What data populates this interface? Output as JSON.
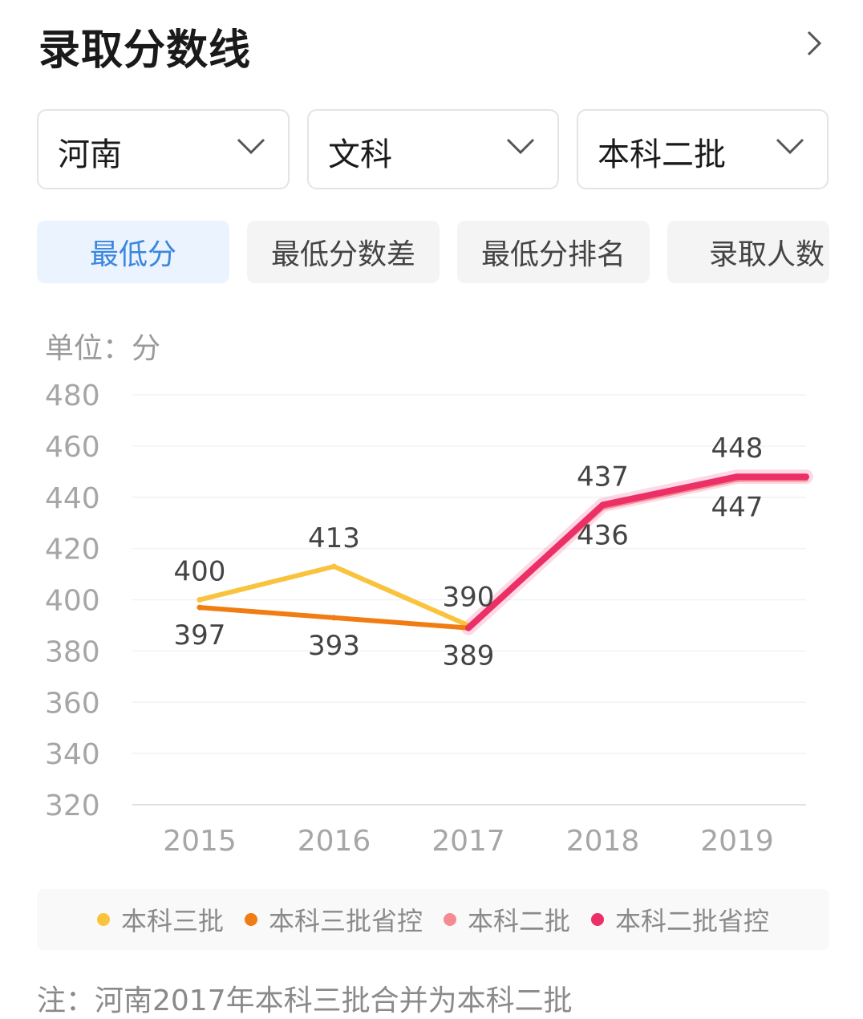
{
  "header": {
    "title": "录取分数线"
  },
  "filters": [
    {
      "label": "河南"
    },
    {
      "label": "文科"
    },
    {
      "label": "本科二批"
    }
  ],
  "tabs": [
    {
      "label": "最低分",
      "active": true
    },
    {
      "label": "最低分数差",
      "active": false
    },
    {
      "label": "最低分排名",
      "active": false
    },
    {
      "label": "录取人数",
      "active": false
    }
  ],
  "colors": {
    "accent": "#3b86de",
    "series_1": "#f9c33e",
    "series_2": "#f07c12",
    "series_3": "#f58a92",
    "series_4": "#ec2f67"
  },
  "chart_data": {
    "type": "line",
    "unit_label": "单位：分",
    "x": [
      "2015",
      "2016",
      "2017",
      "2018",
      "2019"
    ],
    "ylim": [
      320,
      480
    ],
    "yticks": [
      320,
      340,
      360,
      380,
      400,
      420,
      440,
      460,
      480
    ],
    "grid": true,
    "legend_position": "bottom",
    "series": [
      {
        "name": "本科三批",
        "color": "#f9c33e",
        "values": [
          400,
          413,
          390,
          null,
          null
        ]
      },
      {
        "name": "本科三批省控",
        "color": "#f07c12",
        "values": [
          397,
          393,
          389,
          null,
          null
        ]
      },
      {
        "name": "本科二批",
        "color": "#f58a92",
        "values": [
          null,
          null,
          389,
          436,
          447
        ]
      },
      {
        "name": "本科二批省控",
        "color": "#ec2f67",
        "values": [
          null,
          null,
          389,
          437,
          448
        ]
      }
    ],
    "data_labels": [
      {
        "x": "2015",
        "y": 400,
        "text": "400",
        "pos": "above"
      },
      {
        "x": "2015",
        "y": 397,
        "text": "397",
        "pos": "below"
      },
      {
        "x": "2016",
        "y": 413,
        "text": "413",
        "pos": "above"
      },
      {
        "x": "2016",
        "y": 393,
        "text": "393",
        "pos": "below"
      },
      {
        "x": "2017",
        "y": 390,
        "text": "390",
        "pos": "above"
      },
      {
        "x": "2017",
        "y": 389,
        "text": "389",
        "pos": "below"
      },
      {
        "x": "2018",
        "y": 437,
        "text": "437",
        "pos": "above"
      },
      {
        "x": "2018",
        "y": 436,
        "text": "436",
        "pos": "below"
      },
      {
        "x": "2019",
        "y": 448,
        "text": "448",
        "pos": "above"
      },
      {
        "x": "2019",
        "y": 447,
        "text": "447",
        "pos": "below"
      }
    ]
  },
  "note": "注：河南2017年本科三批合并为本科二批"
}
